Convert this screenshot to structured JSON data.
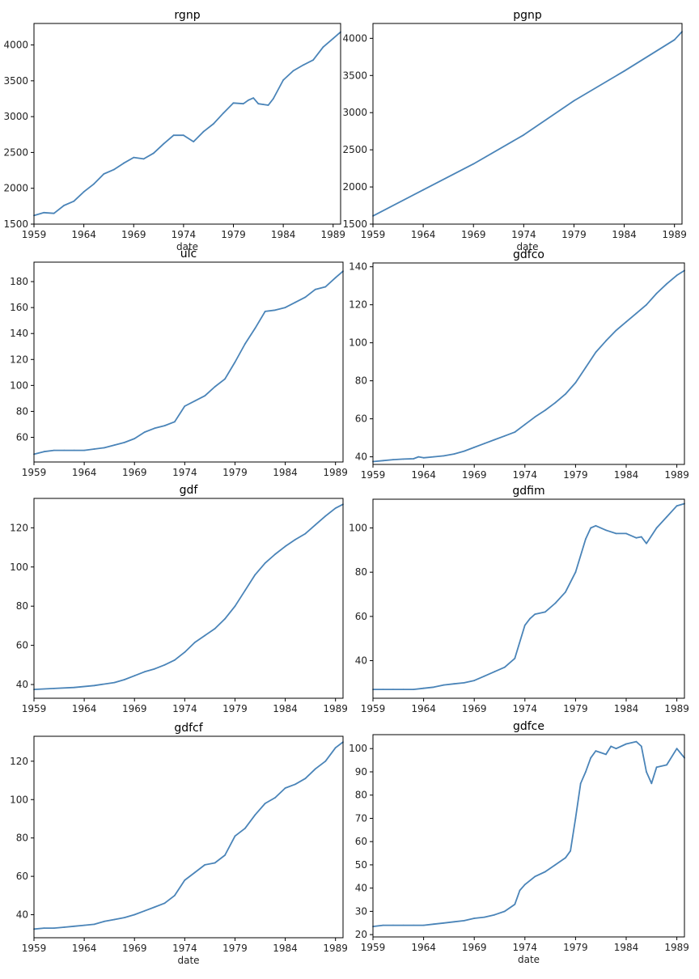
{
  "figure": {
    "title": ""
  },
  "chart_data": [
    {
      "type": "line",
      "title": "rgnp",
      "xlabel": "date",
      "show_xlabel": true,
      "xlim": [
        1959.0,
        1989.75
      ],
      "ylim": [
        1500,
        4300
      ],
      "xticks": [
        1959,
        1964,
        1969,
        1974,
        1979,
        1984,
        1989
      ],
      "xtick_labels": [
        "1959",
        "1964",
        "1969",
        "1974",
        "1979",
        "1984",
        "1989"
      ],
      "yticks": [
        1500,
        2000,
        2500,
        3000,
        3500,
        4000
      ],
      "ytick_labels": [
        "1500",
        "2000",
        "2500",
        "3000",
        "3500",
        "4000"
      ],
      "series": [
        {
          "name": "rgnp",
          "color": "#4a84b8",
          "x": [
            1959,
            1960,
            1961,
            1962,
            1963,
            1964,
            1965,
            1966,
            1967,
            1968,
            1969,
            1970,
            1971,
            1972,
            1973,
            1974,
            1975,
            1976,
            1977,
            1978,
            1979,
            1980,
            1980.5,
            1981,
            1981.5,
            1982,
            1982.5,
            1983,
            1984,
            1985,
            1986,
            1987,
            1988,
            1989,
            1989.75
          ],
          "y": [
            1620,
            1660,
            1650,
            1760,
            1820,
            1950,
            2060,
            2200,
            2260,
            2350,
            2430,
            2410,
            2490,
            2620,
            2740,
            2740,
            2650,
            2790,
            2900,
            3050,
            3190,
            3180,
            3230,
            3260,
            3180,
            3170,
            3160,
            3250,
            3510,
            3640,
            3720,
            3790,
            3970,
            4090,
            4180
          ]
        }
      ]
    },
    {
      "type": "line",
      "title": "pgnp",
      "xlabel": "date",
      "show_xlabel": true,
      "xlim": [
        1959.0,
        1989.75
      ],
      "ylim": [
        1500,
        4200
      ],
      "xticks": [
        1959,
        1964,
        1969,
        1974,
        1979,
        1984,
        1989
      ],
      "xtick_labels": [
        "1959",
        "1964",
        "1969",
        "1974",
        "1979",
        "1984",
        "1989"
      ],
      "yticks": [
        1500,
        2000,
        2500,
        3000,
        3500,
        4000
      ],
      "ytick_labels": [
        "1500",
        "2000",
        "2500",
        "3000",
        "3500",
        "4000"
      ],
      "series": [
        {
          "name": "pgnp",
          "color": "#4a84b8",
          "x": [
            1959,
            1964,
            1969,
            1974,
            1979,
            1984,
            1989,
            1989.75
          ],
          "y": [
            1610,
            1960,
            2310,
            2700,
            3160,
            3560,
            3980,
            4090
          ]
        }
      ]
    },
    {
      "type": "line",
      "title": "ulc",
      "xlabel": "",
      "show_xlabel": false,
      "xlim": [
        1959.0,
        1989.75
      ],
      "ylim": [
        41,
        195
      ],
      "xticks": [
        1959,
        1964,
        1969,
        1974,
        1979,
        1984,
        1989
      ],
      "xtick_labels": [
        "1959",
        "1964",
        "1969",
        "1974",
        "1979",
        "1984",
        "1989"
      ],
      "yticks": [
        60,
        80,
        100,
        120,
        140,
        160,
        180
      ],
      "ytick_labels": [
        "60",
        "80",
        "100",
        "120",
        "140",
        "160",
        "180"
      ],
      "series": [
        {
          "name": "ulc",
          "color": "#4a84b8",
          "x": [
            1959,
            1960,
            1961,
            1962,
            1963,
            1964,
            1965,
            1966,
            1967,
            1968,
            1969,
            1970,
            1971,
            1972,
            1973,
            1974,
            1975,
            1976,
            1977,
            1978,
            1979,
            1980,
            1981,
            1982,
            1983,
            1984,
            1985,
            1986,
            1987,
            1988,
            1989,
            1989.75
          ],
          "y": [
            47,
            49,
            50,
            50,
            50,
            50,
            51,
            52,
            54,
            56,
            59,
            64,
            67,
            69,
            72,
            84,
            88,
            92,
            99,
            105,
            118,
            132,
            144,
            157,
            158,
            160,
            164,
            168,
            174,
            176,
            183,
            188
          ]
        }
      ]
    },
    {
      "type": "line",
      "title": "gdfco",
      "xlabel": "",
      "show_xlabel": false,
      "xlim": [
        1959.0,
        1989.75
      ],
      "ylim": [
        36,
        142
      ],
      "xticks": [
        1959,
        1964,
        1969,
        1974,
        1979,
        1984,
        1989
      ],
      "xtick_labels": [
        "1959",
        "1964",
        "1969",
        "1974",
        "1979",
        "1984",
        "1989"
      ],
      "yticks": [
        40,
        60,
        80,
        100,
        120,
        140
      ],
      "ytick_labels": [
        "40",
        "60",
        "80",
        "100",
        "120",
        "140"
      ],
      "series": [
        {
          "name": "gdfco",
          "color": "#4a84b8",
          "x": [
            1959,
            1960,
            1961,
            1962,
            1963,
            1963.5,
            1964,
            1965,
            1966,
            1967,
            1968,
            1969,
            1970,
            1971,
            1972,
            1973,
            1974,
            1975,
            1976,
            1977,
            1978,
            1979,
            1980,
            1981,
            1982,
            1983,
            1984,
            1985,
            1986,
            1987,
            1988,
            1989,
            1989.75
          ],
          "y": [
            37.5,
            38,
            38.5,
            38.8,
            39,
            40,
            39.5,
            40,
            40.5,
            41.5,
            43,
            45,
            47,
            49,
            51,
            53,
            57,
            61,
            64.5,
            68.5,
            73,
            79,
            87,
            95,
            101,
            106.5,
            111,
            115.5,
            120,
            126,
            131,
            135.5,
            138
          ]
        }
      ]
    },
    {
      "type": "line",
      "title": "gdf",
      "xlabel": "",
      "show_xlabel": false,
      "xlim": [
        1959.0,
        1989.75
      ],
      "ylim": [
        33,
        135
      ],
      "xticks": [
        1959,
        1964,
        1969,
        1974,
        1979,
        1984,
        1989
      ],
      "xtick_labels": [
        "1959",
        "1964",
        "1969",
        "1974",
        "1979",
        "1984",
        "1989"
      ],
      "yticks": [
        40,
        60,
        80,
        100,
        120
      ],
      "ytick_labels": [
        "40",
        "60",
        "80",
        "100",
        "120"
      ],
      "series": [
        {
          "name": "gdf",
          "color": "#4a84b8",
          "x": [
            1959,
            1961,
            1963,
            1965,
            1967,
            1968,
            1969,
            1970,
            1971,
            1972,
            1973,
            1974,
            1975,
            1976,
            1977,
            1978,
            1979,
            1980,
            1981,
            1982,
            1983,
            1984,
            1985,
            1986,
            1987,
            1988,
            1989,
            1989.75
          ],
          "y": [
            37.5,
            38,
            38.5,
            39.5,
            41,
            42.5,
            44.5,
            46.5,
            48,
            50,
            52.5,
            56.5,
            61.5,
            65,
            68.5,
            73.5,
            80,
            88,
            96,
            102,
            106.5,
            110.5,
            114,
            117,
            121.5,
            126,
            130,
            132
          ]
        }
      ]
    },
    {
      "type": "line",
      "title": "gdfim",
      "xlabel": "",
      "show_xlabel": false,
      "xlim": [
        1959.0,
        1989.75
      ],
      "ylim": [
        23,
        113
      ],
      "xticks": [
        1959,
        1964,
        1969,
        1974,
        1979,
        1984,
        1989
      ],
      "xtick_labels": [
        "1959",
        "1964",
        "1969",
        "1974",
        "1979",
        "1984",
        "1989"
      ],
      "yticks": [
        40,
        60,
        80,
        100
      ],
      "ytick_labels": [
        "40",
        "60",
        "80",
        "100"
      ],
      "series": [
        {
          "name": "gdfim",
          "color": "#4a84b8",
          "x": [
            1959,
            1960,
            1961,
            1962,
            1963,
            1964,
            1965,
            1966,
            1967,
            1968,
            1969,
            1970,
            1971,
            1972,
            1973,
            1974,
            1974.5,
            1975,
            1976,
            1977,
            1978,
            1979,
            1980,
            1980.5,
            1981,
            1982,
            1983,
            1984,
            1985,
            1985.5,
            1986,
            1987,
            1988,
            1989,
            1989.75
          ],
          "y": [
            27,
            27,
            27,
            27,
            27,
            27.5,
            28,
            29,
            29.5,
            30,
            31,
            33,
            35,
            37,
            41,
            56,
            59,
            61,
            62,
            66,
            71,
            80,
            95,
            100,
            101,
            99,
            97.5,
            97.5,
            95.5,
            96,
            93,
            100,
            105,
            110,
            111
          ]
        }
      ]
    },
    {
      "type": "line",
      "title": "gdfcf",
      "xlabel": "date",
      "show_xlabel": true,
      "xlim": [
        1959.0,
        1989.75
      ],
      "ylim": [
        28,
        133
      ],
      "xticks": [
        1959,
        1964,
        1969,
        1974,
        1979,
        1984,
        1989
      ],
      "xtick_labels": [
        "1959",
        "1964",
        "1969",
        "1974",
        "1979",
        "1984",
        "1989"
      ],
      "yticks": [
        40,
        60,
        80,
        100,
        120
      ],
      "ytick_labels": [
        "40",
        "60",
        "80",
        "100",
        "120"
      ],
      "series": [
        {
          "name": "gdfcf",
          "color": "#4a84b8",
          "x": [
            1959,
            1960,
            1961,
            1962,
            1963,
            1964,
            1965,
            1966,
            1967,
            1968,
            1969,
            1970,
            1971,
            1972,
            1973,
            1974,
            1975,
            1976,
            1977,
            1978,
            1979,
            1980,
            1981,
            1982,
            1983,
            1984,
            1985,
            1986,
            1987,
            1988,
            1989,
            1989.75
          ],
          "y": [
            32.5,
            33,
            33,
            33.5,
            34,
            34.5,
            35,
            36.5,
            37.5,
            38.5,
            40,
            42,
            44,
            46,
            50,
            58,
            62,
            66,
            67,
            71,
            81,
            85,
            92,
            98,
            101,
            106,
            108,
            111,
            116,
            120,
            127,
            130
          ]
        }
      ]
    },
    {
      "type": "line",
      "title": "gdfce",
      "xlabel": "date",
      "show_xlabel": true,
      "xlim": [
        1959.0,
        1989.75
      ],
      "ylim": [
        19,
        106
      ],
      "xticks": [
        1959,
        1964,
        1969,
        1974,
        1979,
        1984,
        1989
      ],
      "xtick_labels": [
        "1959",
        "1964",
        "1969",
        "1974",
        "1979",
        "1984",
        "1989"
      ],
      "yticks": [
        20,
        30,
        40,
        50,
        60,
        70,
        80,
        90,
        100
      ],
      "ytick_labels": [
        "20",
        "30",
        "40",
        "50",
        "60",
        "70",
        "80",
        "90",
        "100"
      ],
      "series": [
        {
          "name": "gdfce",
          "color": "#4a84b8",
          "x": [
            1959,
            1960,
            1961,
            1962,
            1963,
            1964,
            1965,
            1966,
            1967,
            1968,
            1969,
            1970,
            1971,
            1972,
            1973,
            1973.5,
            1974,
            1975,
            1976,
            1977,
            1978,
            1978.5,
            1979,
            1979.5,
            1980,
            1980.5,
            1981,
            1982,
            1982.5,
            1983,
            1984,
            1985,
            1985.5,
            1986,
            1986.5,
            1987,
            1988,
            1989,
            1989.75
          ],
          "y": [
            23.5,
            24,
            24,
            24,
            24,
            24,
            24.5,
            25,
            25.5,
            26,
            27,
            27.5,
            28.5,
            30,
            33,
            39,
            41.5,
            45,
            47,
            50,
            53,
            56,
            70,
            85,
            90,
            96,
            99,
            97.5,
            101,
            100,
            102,
            103,
            101,
            90,
            85,
            92,
            93,
            100,
            96
          ]
        }
      ]
    }
  ]
}
